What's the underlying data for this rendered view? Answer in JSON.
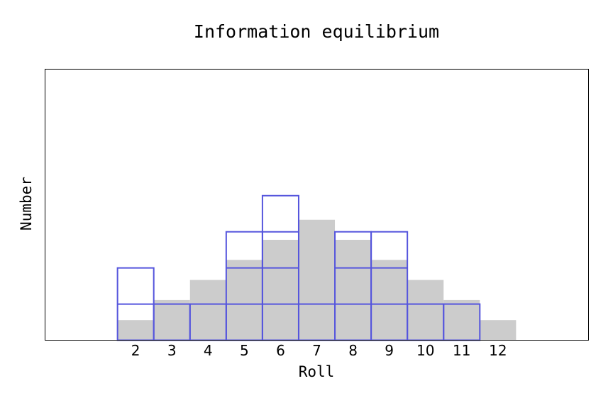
{
  "chart_data": {
    "type": "bar",
    "title": "Information equilibrium",
    "x_label": "Roll",
    "y_label": "Number",
    "x": [
      2,
      3,
      4,
      5,
      6,
      7,
      8,
      9,
      10,
      11,
      12
    ],
    "series": [
      {
        "color": "#cccccc",
        "style": "filled",
        "values": [
          0.556,
          1.111,
          1.667,
          2.222,
          2.778,
          3.333,
          2.778,
          2.222,
          1.667,
          1.111,
          0.556
        ]
      },
      {
        "color": "#5555dd",
        "style": "unit-boxes",
        "values": [
          2,
          1,
          1,
          3,
          4,
          1,
          3,
          3,
          1,
          1,
          0
        ]
      }
    ],
    "xlim": [
      -0.5,
      14.5
    ],
    "ylim": [
      0,
      7.5
    ],
    "xticks": [
      2,
      3,
      4,
      5,
      6,
      7,
      8,
      9,
      10,
      11,
      12
    ],
    "grid": false
  }
}
